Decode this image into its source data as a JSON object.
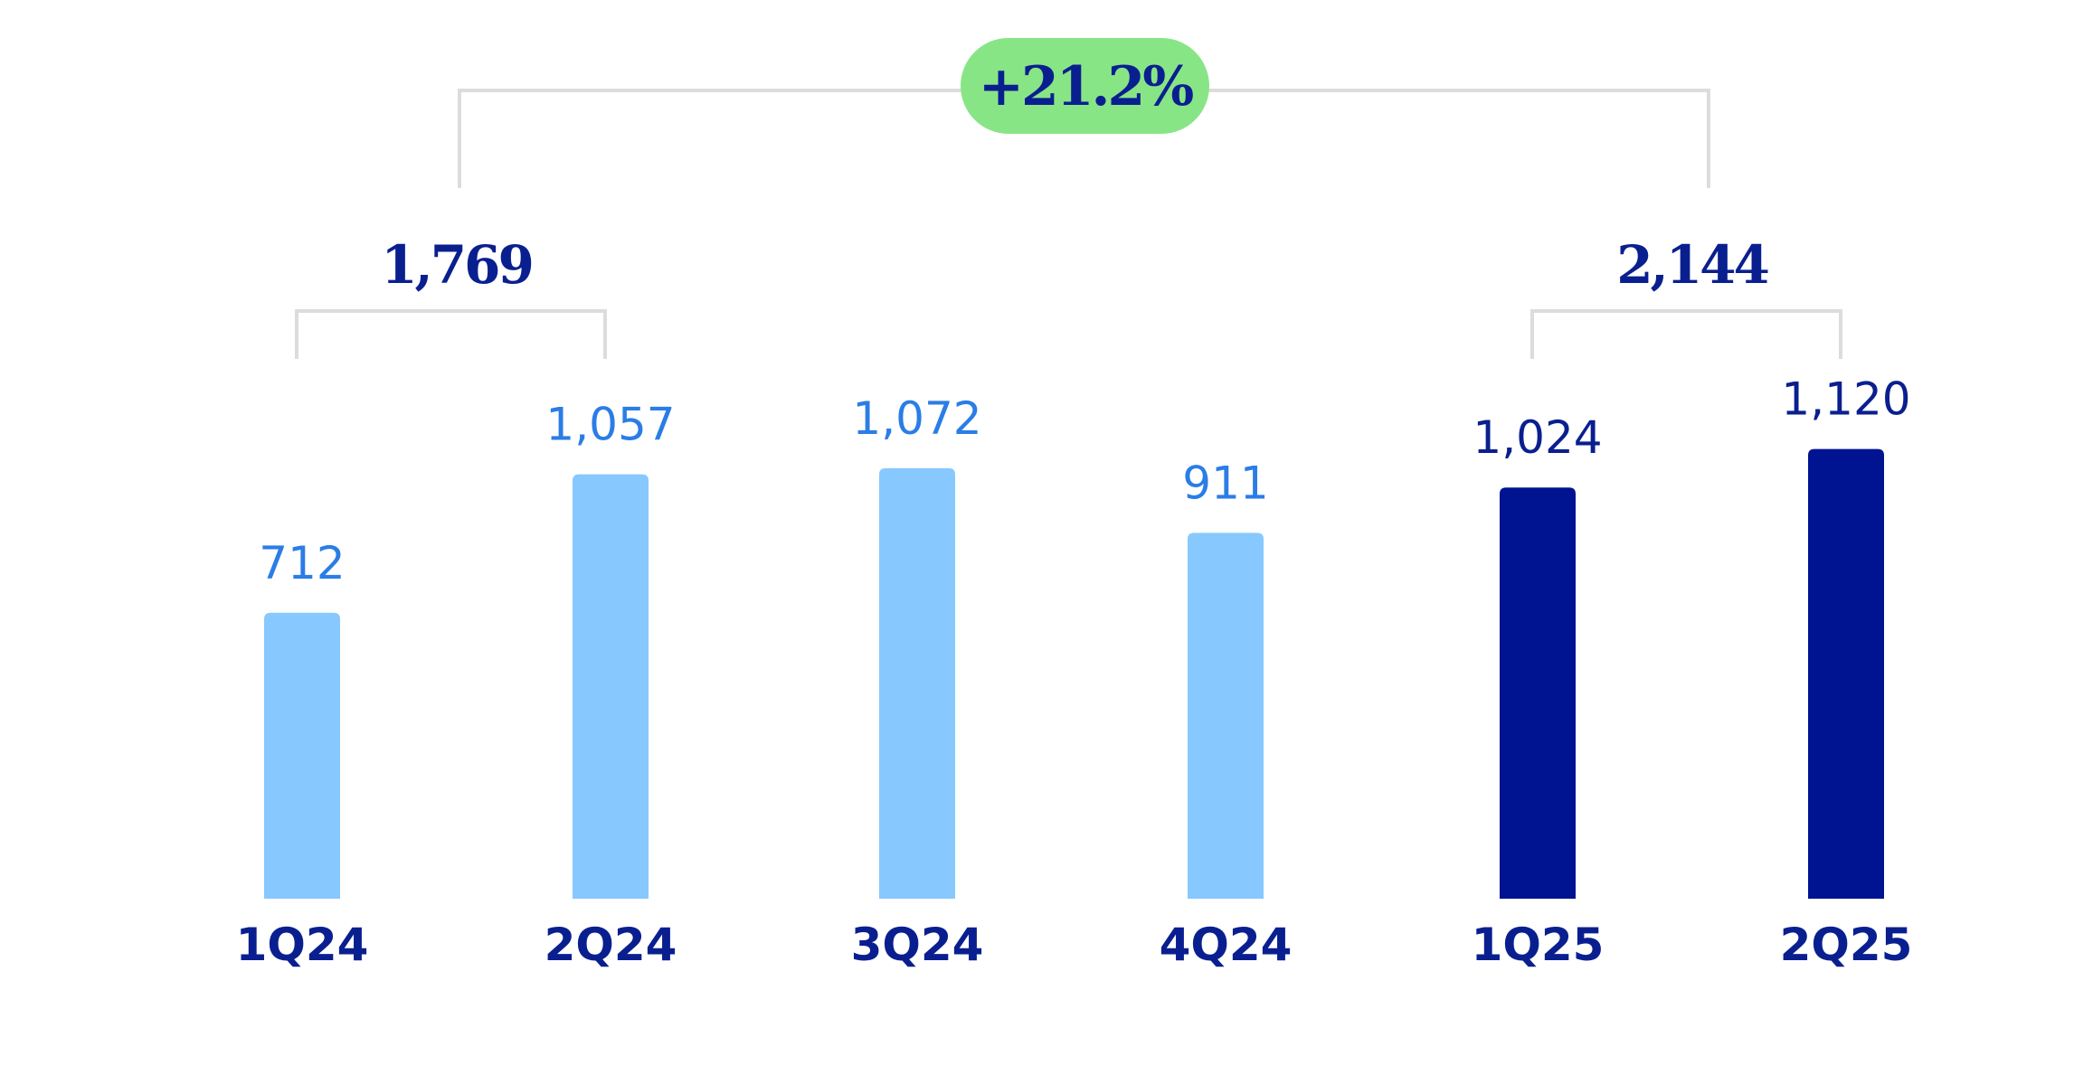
{
  "chart_data": {
    "type": "bar",
    "categories": [
      "1Q24",
      "2Q24",
      "3Q24",
      "4Q24",
      "1Q25",
      "2Q25"
    ],
    "values": [
      712,
      1057,
      1072,
      911,
      1024,
      1120
    ],
    "value_labels": [
      "712",
      "1,057",
      "1,072",
      "911",
      "1,024",
      "1,120"
    ],
    "highlighted": [
      false,
      false,
      false,
      false,
      true,
      true
    ],
    "ylim": [
      0,
      1120
    ],
    "grid": false,
    "title": "",
    "xlabel": "",
    "ylabel": "",
    "group_totals": [
      {
        "label": "1,769",
        "categories": [
          "1Q24",
          "2Q24"
        ]
      },
      {
        "label": "2,144",
        "categories": [
          "1Q25",
          "2Q25"
        ]
      }
    ],
    "growth_badge": "+21.2%"
  },
  "colors": {
    "bar_previous": "#87c8ff",
    "bar_current": "#001391",
    "label_previous": "#2b7de6",
    "label_current": "#0a1f8f",
    "category": "#0a1f8f",
    "badge_fill": "#88e586",
    "badge_text": "#0a1f8f",
    "bracket": "#dcdcdc"
  }
}
